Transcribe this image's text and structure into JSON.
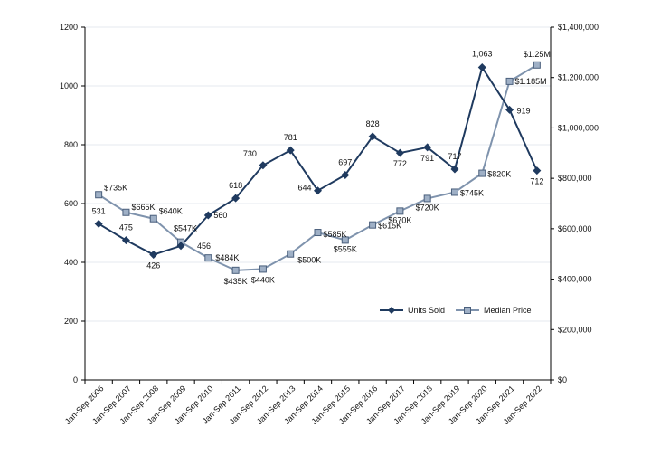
{
  "chart_data": {
    "type": "line",
    "categories": [
      "Jan-Sep 2006",
      "Jan-Sep 2007",
      "Jan-Sep 2008",
      "Jan-Sep 2009",
      "Jan-Sep 2010",
      "Jan-Sep 2011",
      "Jan-Sep 2012",
      "Jan-Sep 2013",
      "Jan-Sep 2014",
      "Jan-Sep 2015",
      "Jan-Sep 2016",
      "Jan-Sep 2017",
      "Jan-Sep 2018",
      "Jan-Sep 2019",
      "Jan-Sep 2020",
      "Jan-Sep 2021",
      "Jan-Sep 2022"
    ],
    "left_axis": {
      "ylim": [
        0,
        1200
      ],
      "ticks": [
        "0",
        "200",
        "400",
        "600",
        "800",
        "1000",
        "1200"
      ],
      "tick_values": [
        0,
        200,
        400,
        600,
        800,
        1000,
        1200
      ]
    },
    "right_axis": {
      "ylim": [
        0,
        1400000
      ],
      "ticks": [
        "$0",
        "$200,000",
        "$400,000",
        "$600,000",
        "$800,000",
        "$1,000,000",
        "$1,200,000",
        "$1,400,000"
      ],
      "tick_values": [
        0,
        200000,
        400000,
        600000,
        800000,
        1000000,
        1200000,
        1400000
      ]
    },
    "grid": "horizontal",
    "legend_position": "bottom-right",
    "series": [
      {
        "name": "Units Sold",
        "axis": "left",
        "color": "#1f3a5f",
        "marker": "diamond",
        "values": [
          531,
          475,
          426,
          456,
          560,
          618,
          730,
          781,
          644,
          697,
          828,
          772,
          791,
          717,
          1063,
          919,
          712
        ],
        "labels": [
          "531",
          "475",
          "426",
          "456",
          "560",
          "618",
          "730",
          "781",
          "644",
          "697",
          "828",
          "772",
          "791",
          "717",
          "1,063",
          "919",
          "712"
        ]
      },
      {
        "name": "Median Price",
        "axis": "right",
        "color": "#7f93ad",
        "marker": "square",
        "values": [
          735000,
          665000,
          640000,
          547000,
          484000,
          435000,
          440000,
          500000,
          585000,
          555000,
          615000,
          670000,
          720000,
          745000,
          820000,
          1185000,
          1250000
        ],
        "labels": [
          "$735K",
          "$665K",
          "$640K",
          "$547K",
          "$484K",
          "$435K",
          "$440K",
          "$500K",
          "$585K",
          "$555K",
          "$615K",
          "$670K",
          "$720K",
          "$745K",
          "$820K",
          "$1.185M",
          "$1.25M"
        ]
      }
    ]
  }
}
